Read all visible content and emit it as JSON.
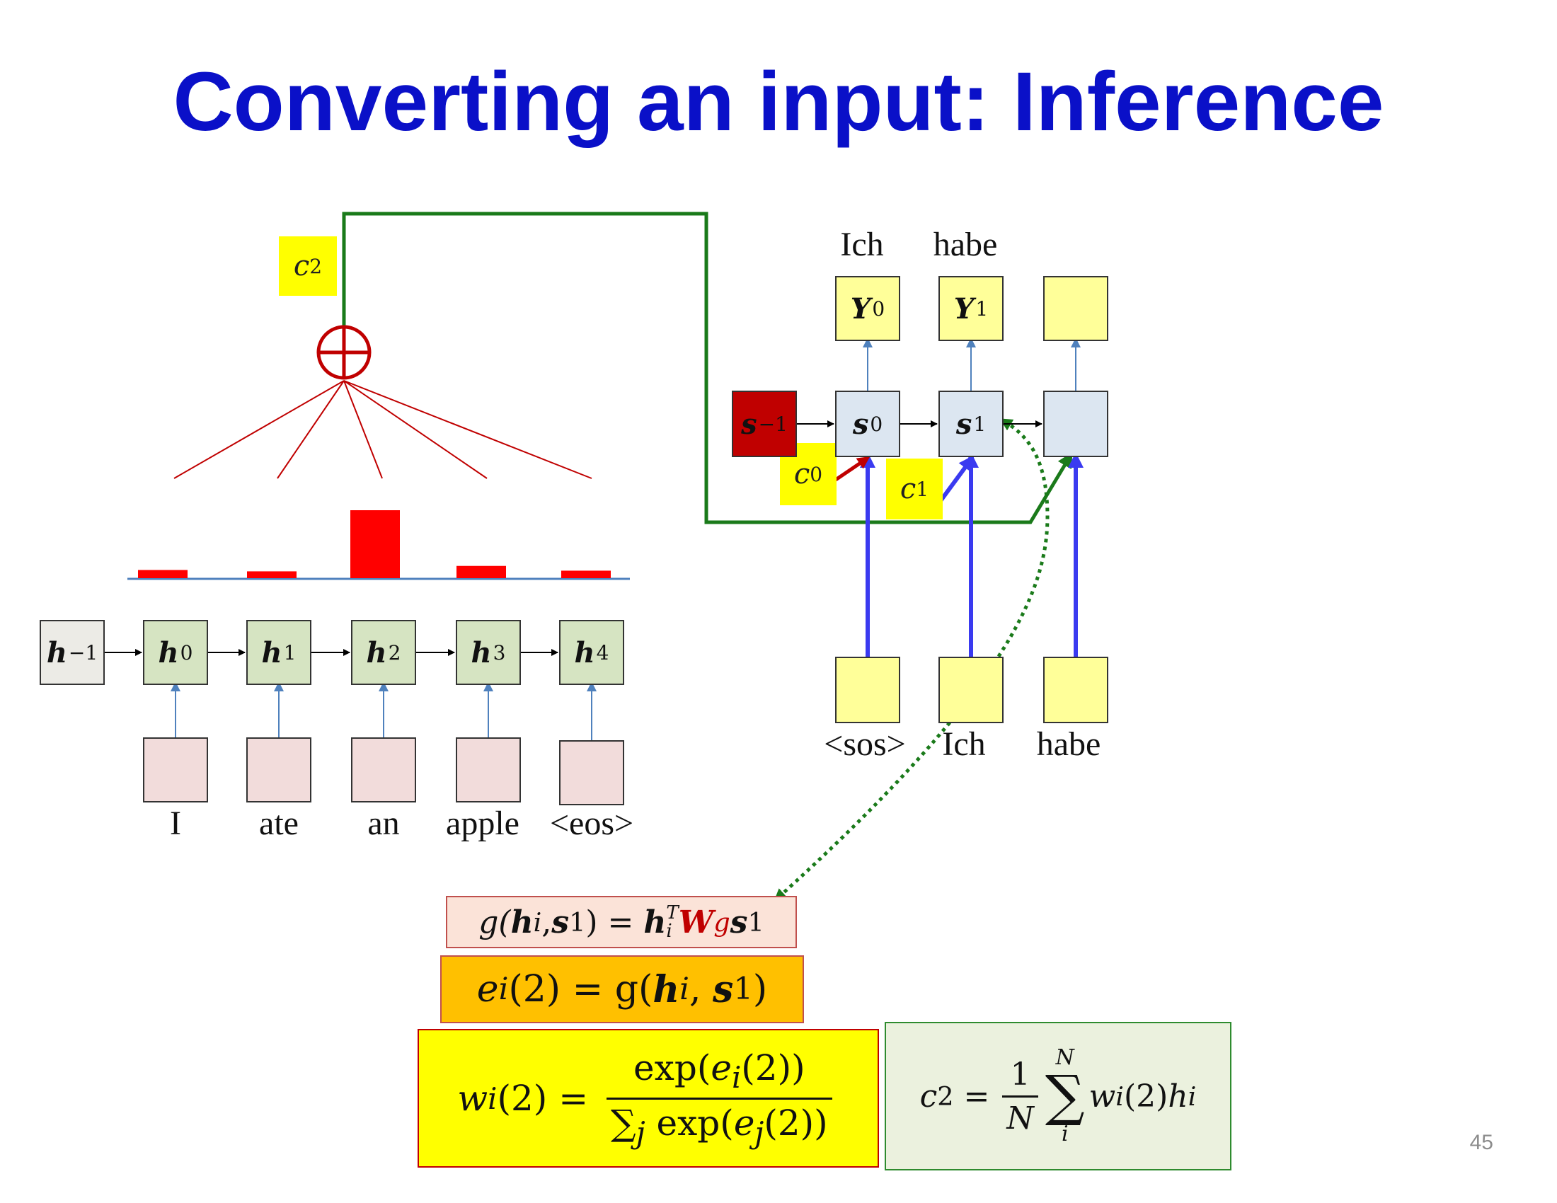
{
  "slide": {
    "title": "Converting an input: Inference",
    "page_number": "45"
  },
  "encoder": {
    "states": [
      {
        "sym": "h",
        "sub": "−1"
      },
      {
        "sym": "h",
        "sub": "0"
      },
      {
        "sym": "h",
        "sub": "1"
      },
      {
        "sym": "h",
        "sub": "2"
      },
      {
        "sym": "h",
        "sub": "3"
      },
      {
        "sym": "h",
        "sub": "4"
      }
    ],
    "words": [
      "I",
      "ate",
      "an",
      "apple",
      "<eos>"
    ],
    "attention_weights": [
      0.12,
      0.1,
      1.0,
      0.18,
      0.11
    ]
  },
  "decoder": {
    "states": [
      {
        "sym": "s",
        "sub": "−1"
      },
      {
        "sym": "s",
        "sub": "0"
      },
      {
        "sym": "s",
        "sub": "1"
      },
      {
        "sym": "",
        "sub": ""
      }
    ],
    "outputs": [
      {
        "sym": "Y",
        "sub": "0",
        "word": "Ich"
      },
      {
        "sym": "Y",
        "sub": "1",
        "word": "habe"
      },
      {
        "sym": "",
        "sub": "",
        "word": ""
      }
    ],
    "inputs": [
      "<sos>",
      "Ich",
      "habe"
    ]
  },
  "context": {
    "c2": {
      "sym": "c",
      "sub": "2"
    },
    "c0": {
      "sym": "c",
      "sub": "0"
    },
    "c1": {
      "sym": "c",
      "sub": "1"
    }
  },
  "equations": {
    "g": {
      "lhs": "g(",
      "h": "h",
      "hsub": "i",
      "comma": ", ",
      "s": "s",
      "ssub": "1",
      "mid": ") = ",
      "hT": "h",
      "hTsup": "T",
      "hTsub": "i",
      "W": "W",
      "Wsub": "g",
      "s2": "s",
      "s2sub": "1"
    },
    "e": {
      "lhs": "e",
      "lhssub": "i",
      "arg": "(2) = g(",
      "h": "h",
      "hsub": "i",
      "comma": ", ",
      "s": "s",
      "ssub": "1",
      "end": ")"
    },
    "w": {
      "lhs": "w",
      "lhssub": "i",
      "arg": "(2) = ",
      "num_a": "exp(",
      "num_e": "e",
      "num_esub": "i",
      "num_b": "(2))",
      "den_sum": "∑",
      "den_sumsub": "j",
      "den_a": " exp(",
      "den_e": "e",
      "den_esub": "j",
      "den_b": "(2))"
    },
    "c": {
      "lhs": "c",
      "lhssub": "2",
      "eq": " = ",
      "frac_num": "1",
      "frac_den": "N",
      "sum_top": "N",
      "sum": "∑",
      "sum_bot": "i",
      "w": "w",
      "wsub": "i",
      "arg": "(2)",
      "h": "h",
      "hsub": "i"
    }
  },
  "colors": {
    "title": "#0a10c8",
    "encoder_state": "#d6e4c2",
    "encoder_init": "#ecebe6",
    "decoder_state": "#dce6f1",
    "decoder_init": "#c00000",
    "io_box": "#ffff99",
    "input_word_box": "#f2dcdb",
    "context": "#ffff00",
    "attention": "#ff0000",
    "green_path": "#1a7a1a"
  }
}
